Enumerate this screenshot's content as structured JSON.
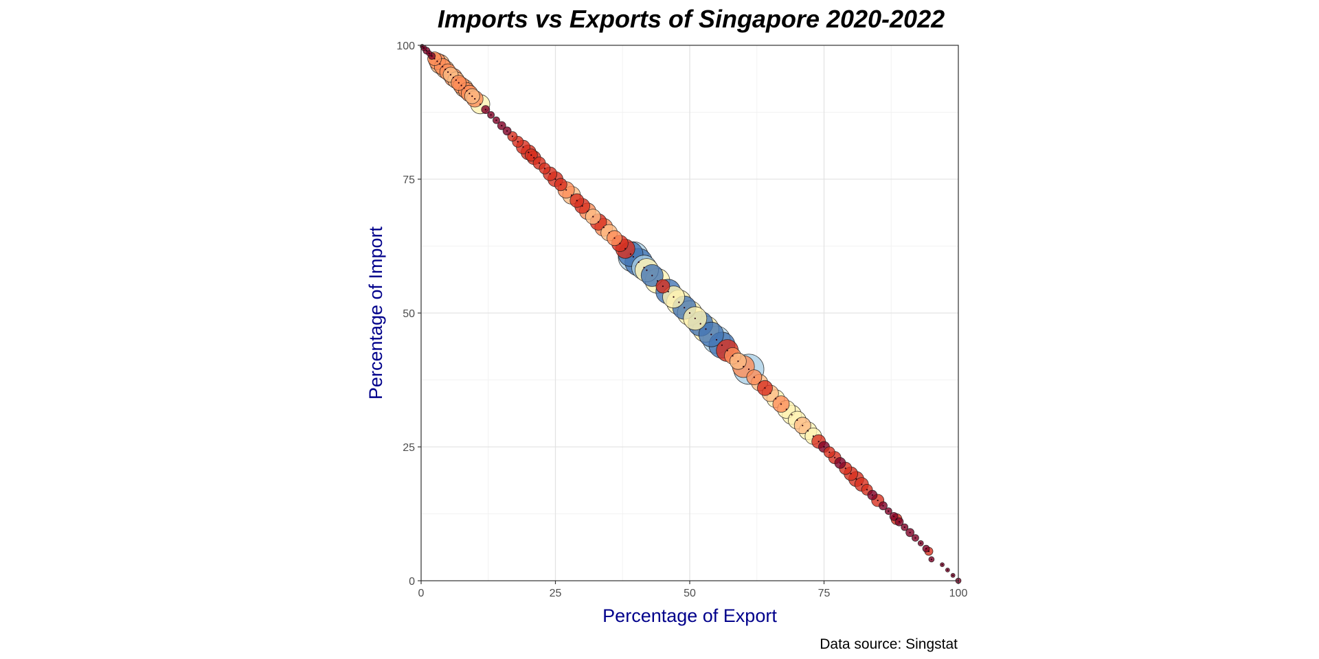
{
  "chart_data": {
    "type": "scatter",
    "title": "Imports vs Exports of Singapore 2020-2022",
    "xlabel": "Percentage of Export",
    "ylabel": "Percentage of Import",
    "caption": "Data source: Singstat",
    "xlim": [
      0,
      100
    ],
    "ylim": [
      0,
      100
    ],
    "xticks": [
      0,
      25,
      50,
      75,
      100
    ],
    "yticks": [
      0,
      25,
      50,
      75,
      100
    ],
    "grid": true,
    "legend": "none",
    "colors": {
      "axis_title": "#00008B",
      "dark_red": "#800026",
      "red": "#D7301F",
      "orange": "#FC8D59",
      "light_orange": "#FDBB84",
      "cream": "#FFF2B3",
      "light_blue": "#ABD0E6",
      "blue": "#4575B4"
    },
    "points": [
      {
        "x": 0.2,
        "y": 99.8,
        "size": 3,
        "color": "#800026"
      },
      {
        "x": 0.5,
        "y": 99.5,
        "size": 4,
        "color": "#800026"
      },
      {
        "x": 1.0,
        "y": 99.0,
        "size": 5,
        "color": "#800026"
      },
      {
        "x": 1.5,
        "y": 98.5,
        "size": 4,
        "color": "#800026"
      },
      {
        "x": 2.0,
        "y": 98.0,
        "size": 5,
        "color": "#800026"
      },
      {
        "x": 2.5,
        "y": 97.5,
        "size": 10,
        "color": "#FC8D59"
      },
      {
        "x": 3.0,
        "y": 97.0,
        "size": 12,
        "color": "#FC8D59"
      },
      {
        "x": 3.5,
        "y": 96.5,
        "size": 14,
        "color": "#FDBB84"
      },
      {
        "x": 4.0,
        "y": 96.0,
        "size": 12,
        "color": "#FC8D59"
      },
      {
        "x": 4.5,
        "y": 95.5,
        "size": 13,
        "color": "#FDBB84"
      },
      {
        "x": 5.0,
        "y": 95.0,
        "size": 12,
        "color": "#FC8D59"
      },
      {
        "x": 5.5,
        "y": 94.5,
        "size": 11,
        "color": "#FDBB84"
      },
      {
        "x": 6.0,
        "y": 94.0,
        "size": 13,
        "color": "#FC8D59"
      },
      {
        "x": 6.5,
        "y": 93.5,
        "size": 12,
        "color": "#FDBB84"
      },
      {
        "x": 7.0,
        "y": 93.0,
        "size": 11,
        "color": "#FC8D59"
      },
      {
        "x": 7.5,
        "y": 92.5,
        "size": 12,
        "color": "#FC8D59"
      },
      {
        "x": 8.0,
        "y": 92.0,
        "size": 13,
        "color": "#FDBB84"
      },
      {
        "x": 8.5,
        "y": 91.5,
        "size": 12,
        "color": "#FC8D59"
      },
      {
        "x": 9.0,
        "y": 91.0,
        "size": 12,
        "color": "#FC8D59"
      },
      {
        "x": 9.5,
        "y": 90.5,
        "size": 11,
        "color": "#FDBB84"
      },
      {
        "x": 10.0,
        "y": 90.0,
        "size": 12,
        "color": "#FC8D59"
      },
      {
        "x": 11.0,
        "y": 89.0,
        "size": 14,
        "color": "#FFF2B3"
      },
      {
        "x": 12.0,
        "y": 88.0,
        "size": 6,
        "color": "#800026"
      },
      {
        "x": 13.0,
        "y": 87.0,
        "size": 5,
        "color": "#800026"
      },
      {
        "x": 14.0,
        "y": 86.0,
        "size": 5,
        "color": "#800026"
      },
      {
        "x": 15.0,
        "y": 85.0,
        "size": 6,
        "color": "#800026"
      },
      {
        "x": 16.0,
        "y": 84.0,
        "size": 6,
        "color": "#800026"
      },
      {
        "x": 17.0,
        "y": 83.0,
        "size": 7,
        "color": "#D7301F"
      },
      {
        "x": 18.0,
        "y": 82.0,
        "size": 8,
        "color": "#D7301F"
      },
      {
        "x": 19.0,
        "y": 81.0,
        "size": 10,
        "color": "#D7301F"
      },
      {
        "x": 20.0,
        "y": 80.0,
        "size": 11,
        "color": "#D7301F"
      },
      {
        "x": 20.5,
        "y": 79.5,
        "size": 9,
        "color": "#D7301F"
      },
      {
        "x": 21.0,
        "y": 79.0,
        "size": 10,
        "color": "#D7301F"
      },
      {
        "x": 22.0,
        "y": 78.0,
        "size": 9,
        "color": "#D7301F"
      },
      {
        "x": 23.0,
        "y": 77.0,
        "size": 8,
        "color": "#D7301F"
      },
      {
        "x": 24.0,
        "y": 76.0,
        "size": 10,
        "color": "#D7301F"
      },
      {
        "x": 25.0,
        "y": 75.0,
        "size": 11,
        "color": "#D7301F"
      },
      {
        "x": 26.0,
        "y": 74.0,
        "size": 9,
        "color": "#D7301F"
      },
      {
        "x": 27.0,
        "y": 73.0,
        "size": 12,
        "color": "#FC8D59"
      },
      {
        "x": 28.0,
        "y": 72.0,
        "size": 13,
        "color": "#FDBB84"
      },
      {
        "x": 29.0,
        "y": 71.0,
        "size": 10,
        "color": "#D7301F"
      },
      {
        "x": 30.0,
        "y": 70.0,
        "size": 11,
        "color": "#D7301F"
      },
      {
        "x": 31.0,
        "y": 69.0,
        "size": 12,
        "color": "#FC8D59"
      },
      {
        "x": 32.0,
        "y": 68.0,
        "size": 11,
        "color": "#FDBB84"
      },
      {
        "x": 33.0,
        "y": 67.0,
        "size": 12,
        "color": "#D7301F"
      },
      {
        "x": 34.0,
        "y": 66.0,
        "size": 13,
        "color": "#FC8D59"
      },
      {
        "x": 35.0,
        "y": 65.0,
        "size": 12,
        "color": "#FDBB84"
      },
      {
        "x": 36.0,
        "y": 64.0,
        "size": 11,
        "color": "#FC8D59"
      },
      {
        "x": 37.0,
        "y": 63.0,
        "size": 12,
        "color": "#D7301F"
      },
      {
        "x": 38.0,
        "y": 62.0,
        "size": 14,
        "color": "#D7301F"
      },
      {
        "x": 39.0,
        "y": 61.0,
        "size": 18,
        "color": "#4575B4"
      },
      {
        "x": 39.5,
        "y": 60.5,
        "size": 22,
        "color": "#ABD0E6"
      },
      {
        "x": 40.5,
        "y": 59.5,
        "size": 20,
        "color": "#4575B4"
      },
      {
        "x": 41.5,
        "y": 58.5,
        "size": 18,
        "color": "#ABD0E6"
      },
      {
        "x": 42.0,
        "y": 58.0,
        "size": 17,
        "color": "#FFF2B3"
      },
      {
        "x": 43.0,
        "y": 57.0,
        "size": 16,
        "color": "#4575B4"
      },
      {
        "x": 44.0,
        "y": 56.0,
        "size": 18,
        "color": "#FFF2B3"
      },
      {
        "x": 45.0,
        "y": 55.0,
        "size": 10,
        "color": "#D7301F"
      },
      {
        "x": 46.0,
        "y": 54.0,
        "size": 18,
        "color": "#4575B4"
      },
      {
        "x": 47.0,
        "y": 53.0,
        "size": 16,
        "color": "#FFF2B3"
      },
      {
        "x": 48.0,
        "y": 52.0,
        "size": 18,
        "color": "#FFF2B3"
      },
      {
        "x": 49.0,
        "y": 51.0,
        "size": 17,
        "color": "#4575B4"
      },
      {
        "x": 50.0,
        "y": 50.0,
        "size": 18,
        "color": "#FFF2B3"
      },
      {
        "x": 51.0,
        "y": 49.0,
        "size": 17,
        "color": "#FFF2B3"
      },
      {
        "x": 52.0,
        "y": 48.0,
        "size": 18,
        "color": "#4575B4"
      },
      {
        "x": 53.0,
        "y": 47.0,
        "size": 19,
        "color": "#FFF2B3"
      },
      {
        "x": 54.0,
        "y": 46.0,
        "size": 18,
        "color": "#4575B4"
      },
      {
        "x": 55.0,
        "y": 45.0,
        "size": 20,
        "color": "#ABD0E6"
      },
      {
        "x": 56.0,
        "y": 44.0,
        "size": 19,
        "color": "#4575B4"
      },
      {
        "x": 57.0,
        "y": 43.0,
        "size": 16,
        "color": "#D7301F"
      },
      {
        "x": 58.0,
        "y": 42.0,
        "size": 12,
        "color": "#FC8D59"
      },
      {
        "x": 59.0,
        "y": 41.0,
        "size": 12,
        "color": "#FDBB84"
      },
      {
        "x": 60.0,
        "y": 40.0,
        "size": 16,
        "color": "#FC8D59"
      },
      {
        "x": 61.0,
        "y": 39.5,
        "size": 22,
        "color": "#ABD0E6"
      },
      {
        "x": 62.0,
        "y": 38.0,
        "size": 11,
        "color": "#FC8D59"
      },
      {
        "x": 63.0,
        "y": 37.0,
        "size": 12,
        "color": "#FDBB84"
      },
      {
        "x": 64.0,
        "y": 36.0,
        "size": 11,
        "color": "#D7301F"
      },
      {
        "x": 65.0,
        "y": 35.0,
        "size": 12,
        "color": "#FDBB84"
      },
      {
        "x": 66.0,
        "y": 34.0,
        "size": 13,
        "color": "#FFF2B3"
      },
      {
        "x": 67.0,
        "y": 33.0,
        "size": 12,
        "color": "#FC8D59"
      },
      {
        "x": 68.0,
        "y": 32.0,
        "size": 13,
        "color": "#FFF2B3"
      },
      {
        "x": 69.0,
        "y": 31.0,
        "size": 14,
        "color": "#FFF2B3"
      },
      {
        "x": 70.0,
        "y": 30.0,
        "size": 13,
        "color": "#FFF2B3"
      },
      {
        "x": 71.0,
        "y": 29.0,
        "size": 12,
        "color": "#FDBB84"
      },
      {
        "x": 72.0,
        "y": 28.0,
        "size": 13,
        "color": "#FFF2B3"
      },
      {
        "x": 73.0,
        "y": 27.0,
        "size": 12,
        "color": "#FFF2B3"
      },
      {
        "x": 74.0,
        "y": 26.0,
        "size": 10,
        "color": "#D7301F"
      },
      {
        "x": 75.0,
        "y": 25.0,
        "size": 8,
        "color": "#800026"
      },
      {
        "x": 76.0,
        "y": 24.0,
        "size": 8,
        "color": "#D7301F"
      },
      {
        "x": 77.0,
        "y": 23.0,
        "size": 9,
        "color": "#D7301F"
      },
      {
        "x": 78.0,
        "y": 22.0,
        "size": 8,
        "color": "#800026"
      },
      {
        "x": 79.0,
        "y": 21.0,
        "size": 9,
        "color": "#D7301F"
      },
      {
        "x": 80.0,
        "y": 20.0,
        "size": 10,
        "color": "#D7301F"
      },
      {
        "x": 81.0,
        "y": 19.0,
        "size": 11,
        "color": "#D7301F"
      },
      {
        "x": 82.0,
        "y": 18.0,
        "size": 10,
        "color": "#D7301F"
      },
      {
        "x": 83.0,
        "y": 17.0,
        "size": 8,
        "color": "#D7301F"
      },
      {
        "x": 84.0,
        "y": 16.0,
        "size": 7,
        "color": "#800026"
      },
      {
        "x": 85.0,
        "y": 15.0,
        "size": 9,
        "color": "#D7301F"
      },
      {
        "x": 86.0,
        "y": 14.0,
        "size": 6,
        "color": "#800026"
      },
      {
        "x": 87.0,
        "y": 13.0,
        "size": 5,
        "color": "#800026"
      },
      {
        "x": 88.0,
        "y": 12.0,
        "size": 6,
        "color": "#800026"
      },
      {
        "x": 88.5,
        "y": 11.5,
        "size": 8,
        "color": "#D7301F"
      },
      {
        "x": 89.0,
        "y": 11.0,
        "size": 6,
        "color": "#800026"
      },
      {
        "x": 90.0,
        "y": 10.0,
        "size": 5,
        "color": "#800026"
      },
      {
        "x": 91.0,
        "y": 9.0,
        "size": 6,
        "color": "#800026"
      },
      {
        "x": 92.0,
        "y": 8.0,
        "size": 5,
        "color": "#800026"
      },
      {
        "x": 93.0,
        "y": 7.0,
        "size": 4,
        "color": "#800026"
      },
      {
        "x": 94.0,
        "y": 6.0,
        "size": 5,
        "color": "#800026"
      },
      {
        "x": 94.5,
        "y": 5.5,
        "size": 6,
        "color": "#D7301F"
      },
      {
        "x": 95.0,
        "y": 4.0,
        "size": 4,
        "color": "#800026"
      },
      {
        "x": 97.0,
        "y": 3.0,
        "size": 3,
        "color": "#800026"
      },
      {
        "x": 98.0,
        "y": 2.0,
        "size": 3,
        "color": "#800026"
      },
      {
        "x": 99.0,
        "y": 1.0,
        "size": 3,
        "color": "#800026"
      },
      {
        "x": 100.0,
        "y": 0.0,
        "size": 4,
        "color": "#800026"
      }
    ]
  }
}
